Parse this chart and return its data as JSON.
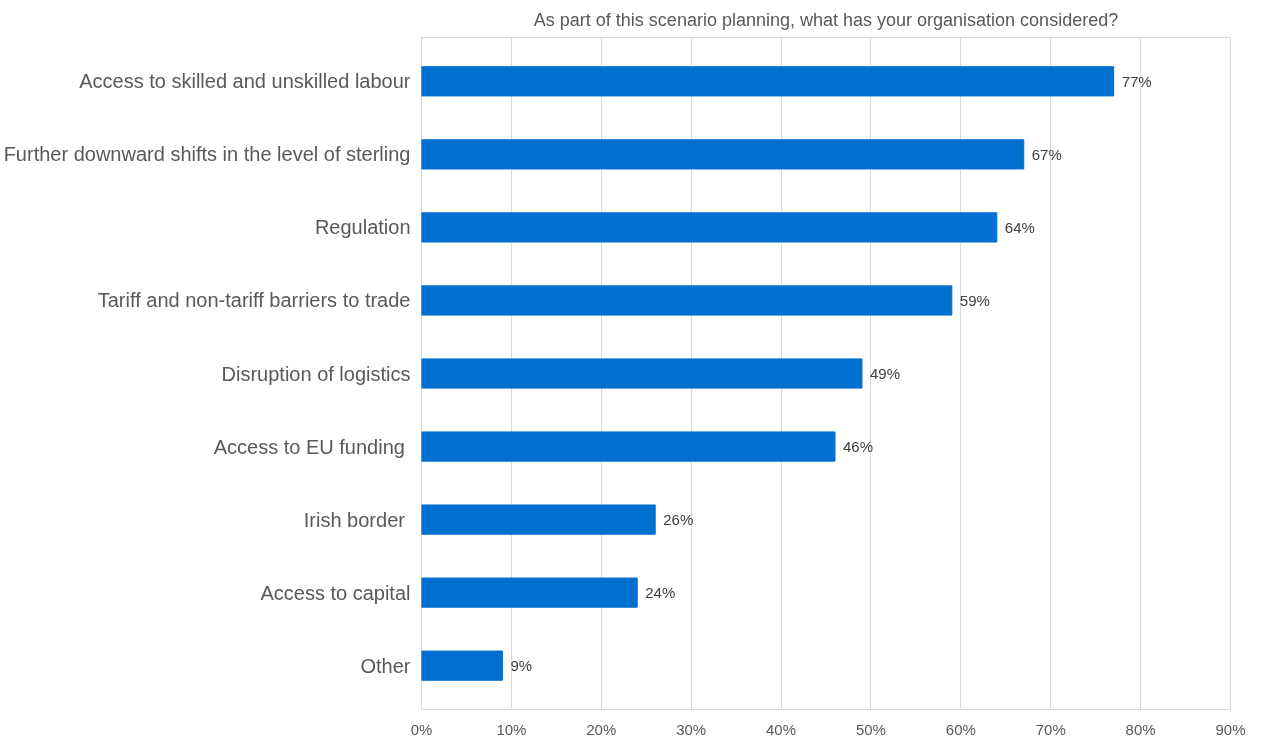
{
  "chart_data": {
    "type": "bar",
    "orientation": "horizontal",
    "title": "As part of this scenario planning, what has your organisation considered?",
    "categories": [
      "Access to skilled and unskilled labour",
      "Further downward shifts in the level of sterling",
      "Regulation",
      "Tariff and non-tariff barriers to trade",
      "Disruption of logistics",
      "Access to EU funding ",
      "Irish border ",
      "Access to capital",
      "Other"
    ],
    "values": [
      77,
      67,
      64,
      59,
      49,
      46,
      26,
      24,
      9
    ],
    "value_labels": [
      "77%",
      "67%",
      "64%",
      "59%",
      "49%",
      "46%",
      "26%",
      "24%",
      "9%"
    ],
    "color": "#0070d0",
    "xlim": [
      0,
      90
    ],
    "xticks": [
      {
        "value": 0,
        "label": "0%"
      },
      {
        "value": 10,
        "label": "10%"
      },
      {
        "value": 20,
        "label": "20%"
      },
      {
        "value": 30,
        "label": "30%"
      },
      {
        "value": 40,
        "label": "40%"
      },
      {
        "value": 50,
        "label": "50%"
      },
      {
        "value": 60,
        "label": "60%"
      },
      {
        "value": 70,
        "label": "70%"
      },
      {
        "value": 80,
        "label": "80%"
      },
      {
        "value": 90,
        "label": "90%"
      }
    ],
    "grid": "x"
  }
}
